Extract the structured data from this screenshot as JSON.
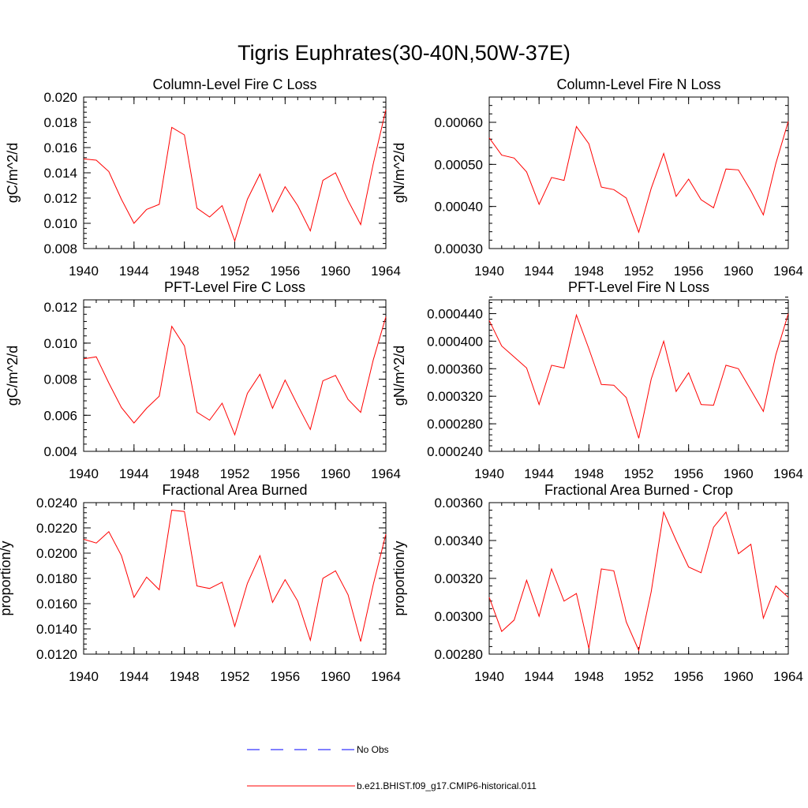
{
  "figure": {
    "title": "Tigris Euphrates(30-40N,50W-37E)"
  },
  "legend": {
    "entries": [
      {
        "label": "No Obs",
        "color": "#0000ff",
        "style": "dashed"
      },
      {
        "label": "b.e21.BHIST.f09_g17.CMIP6-historical.011",
        "color": "#ff0000",
        "style": "solid"
      }
    ]
  },
  "colors": {
    "series": "#ff0000",
    "axes": "#000000"
  },
  "chart_data": [
    {
      "type": "line",
      "title": "Column-Level Fire C Loss",
      "ylabel": "gC/m^2/d",
      "xlim": [
        1940,
        1964
      ],
      "ylim": [
        0.008,
        0.02
      ],
      "xticks": [
        "1940",
        "1944",
        "1948",
        "1952",
        "1956",
        "1960",
        "1964"
      ],
      "yticks": [
        "0.008",
        "0.010",
        "0.012",
        "0.014",
        "0.016",
        "0.018",
        "0.020"
      ],
      "x": [
        1940,
        1941,
        1942,
        1943,
        1944,
        1945,
        1946,
        1947,
        1948,
        1949,
        1950,
        1951,
        1952,
        1953,
        1954,
        1955,
        1956,
        1957,
        1958,
        1959,
        1960,
        1961,
        1962,
        1963,
        1964
      ],
      "series": [
        {
          "name": "b.e21.BHIST.f09_g17.CMIP6-historical.011",
          "values": [
            0.0151,
            0.015,
            0.0141,
            0.0119,
            0.01,
            0.0111,
            0.0115,
            0.0176,
            0.017,
            0.0112,
            0.0105,
            0.0114,
            0.0086,
            0.0119,
            0.0139,
            0.0109,
            0.0129,
            0.0114,
            0.0094,
            0.0134,
            0.014,
            0.0118,
            0.0099,
            0.0147,
            0.019
          ]
        }
      ]
    },
    {
      "type": "line",
      "title": "Column-Level Fire N Loss",
      "ylabel": "gN/m^2/d",
      "xlim": [
        1940,
        1964
      ],
      "ylim": [
        0.0003,
        0.00066
      ],
      "xticks": [
        "1940",
        "1944",
        "1948",
        "1952",
        "1956",
        "1960",
        "1964"
      ],
      "yticks": [
        "0.00030",
        "0.00040",
        "0.00050",
        "0.00060"
      ],
      "x": [
        1940,
        1941,
        1942,
        1943,
        1944,
        1945,
        1946,
        1947,
        1948,
        1949,
        1950,
        1951,
        1952,
        1953,
        1954,
        1955,
        1956,
        1957,
        1958,
        1959,
        1960,
        1961,
        1962,
        1963,
        1964
      ],
      "series": [
        {
          "name": "b.e21.BHIST.f09_g17.CMIP6-historical.011",
          "values": [
            0.000563,
            0.000522,
            0.000515,
            0.000482,
            0.000405,
            0.000469,
            0.000462,
            0.00059,
            0.000549,
            0.000446,
            0.00044,
            0.00042,
            0.000339,
            0.000443,
            0.000526,
            0.000424,
            0.000465,
            0.000416,
            0.000397,
            0.000489,
            0.000487,
            0.000437,
            0.00038,
            0.000502,
            0.000602
          ]
        }
      ]
    },
    {
      "type": "line",
      "title": "PFT-Level Fire C Loss",
      "ylabel": "gC/m^2/d",
      "xlim": [
        1940,
        1964
      ],
      "ylim": [
        0.004,
        0.0124
      ],
      "xticks": [
        "1940",
        "1944",
        "1948",
        "1952",
        "1956",
        "1960",
        "1964"
      ],
      "yticks": [
        "0.004",
        "0.006",
        "0.008",
        "0.010",
        "0.012"
      ],
      "x": [
        1940,
        1941,
        1942,
        1943,
        1944,
        1945,
        1946,
        1947,
        1948,
        1949,
        1950,
        1951,
        1952,
        1953,
        1954,
        1955,
        1956,
        1957,
        1958,
        1959,
        1960,
        1961,
        1962,
        1963,
        1964
      ],
      "series": [
        {
          "name": "b.e21.BHIST.f09_g17.CMIP6-historical.011",
          "values": [
            0.00913,
            0.00924,
            0.00779,
            0.00643,
            0.00557,
            0.00639,
            0.00706,
            0.01093,
            0.00985,
            0.00617,
            0.00573,
            0.00667,
            0.00492,
            0.00721,
            0.00827,
            0.00639,
            0.00795,
            0.00655,
            0.00521,
            0.00791,
            0.00821,
            0.00688,
            0.00616,
            0.00906,
            0.01146
          ]
        }
      ]
    },
    {
      "type": "line",
      "title": "PFT-Level Fire N Loss",
      "ylabel": "gN/m^2/d",
      "xlim": [
        1940,
        1964
      ],
      "ylim": [
        0.00024,
        0.00046
      ],
      "xticks": [
        "1940",
        "1944",
        "1948",
        "1952",
        "1956",
        "1960",
        "1964"
      ],
      "yticks": [
        "0.000240",
        "0.000280",
        "0.000320",
        "0.000360",
        "0.000400",
        "0.000440"
      ],
      "x": [
        1940,
        1941,
        1942,
        1943,
        1944,
        1945,
        1946,
        1947,
        1948,
        1949,
        1950,
        1951,
        1952,
        1953,
        1954,
        1955,
        1956,
        1957,
        1958,
        1959,
        1960,
        1961,
        1962,
        1963,
        1964
      ],
      "series": [
        {
          "name": "b.e21.BHIST.f09_g17.CMIP6-historical.011",
          "values": [
            0.00043,
            0.000393,
            0.000377,
            0.000361,
            0.000308,
            0.000365,
            0.000361,
            0.000438,
            0.000389,
            0.000337,
            0.000336,
            0.000318,
            0.000259,
            0.000345,
            0.0004,
            0.000327,
            0.000354,
            0.000308,
            0.000307,
            0.000365,
            0.00036,
            0.000329,
            0.000298,
            0.00038,
            0.00044
          ]
        }
      ]
    },
    {
      "type": "line",
      "title": "Fractional Area Burned",
      "ylabel": "proportion/y",
      "xlim": [
        1940,
        1964
      ],
      "ylim": [
        0.012,
        0.024
      ],
      "xticks": [
        "1940",
        "1944",
        "1948",
        "1952",
        "1956",
        "1960",
        "1964"
      ],
      "yticks": [
        "0.0120",
        "0.0140",
        "0.0160",
        "0.0180",
        "0.0200",
        "0.0220",
        "0.0240"
      ],
      "x": [
        1940,
        1941,
        1942,
        1943,
        1944,
        1945,
        1946,
        1947,
        1948,
        1949,
        1950,
        1951,
        1952,
        1953,
        1954,
        1955,
        1956,
        1957,
        1958,
        1959,
        1960,
        1961,
        1962,
        1963,
        1964
      ],
      "series": [
        {
          "name": "b.e21.BHIST.f09_g17.CMIP6-historical.011",
          "values": [
            0.0211,
            0.0208,
            0.0217,
            0.0198,
            0.0165,
            0.0181,
            0.0171,
            0.0234,
            0.0233,
            0.0174,
            0.0172,
            0.0177,
            0.0142,
            0.0176,
            0.0198,
            0.0161,
            0.0179,
            0.0162,
            0.0131,
            0.018,
            0.0186,
            0.0167,
            0.013,
            0.0175,
            0.0215
          ]
        }
      ]
    },
    {
      "type": "line",
      "title": "Fractional Area Burned - Crop",
      "ylabel": "proportion/y",
      "xlim": [
        1940,
        1964
      ],
      "ylim": [
        0.0028,
        0.0036
      ],
      "xticks": [
        "1940",
        "1944",
        "1948",
        "1952",
        "1956",
        "1960",
        "1964"
      ],
      "yticks": [
        "0.00280",
        "0.00300",
        "0.00320",
        "0.00340",
        "0.00360"
      ],
      "x": [
        1940,
        1941,
        1942,
        1943,
        1944,
        1945,
        1946,
        1947,
        1948,
        1949,
        1950,
        1951,
        1952,
        1953,
        1954,
        1955,
        1956,
        1957,
        1958,
        1959,
        1960,
        1961,
        1962,
        1963,
        1964
      ],
      "series": [
        {
          "name": "b.e21.BHIST.f09_g17.CMIP6-historical.011",
          "values": [
            0.0031,
            0.00292,
            0.00298,
            0.00319,
            0.003,
            0.00325,
            0.00308,
            0.00312,
            0.00283,
            0.00325,
            0.00324,
            0.00297,
            0.00282,
            0.00313,
            0.00355,
            0.0034,
            0.00326,
            0.00323,
            0.00347,
            0.00355,
            0.00333,
            0.00338,
            0.00299,
            0.00316,
            0.0031
          ]
        }
      ]
    }
  ]
}
